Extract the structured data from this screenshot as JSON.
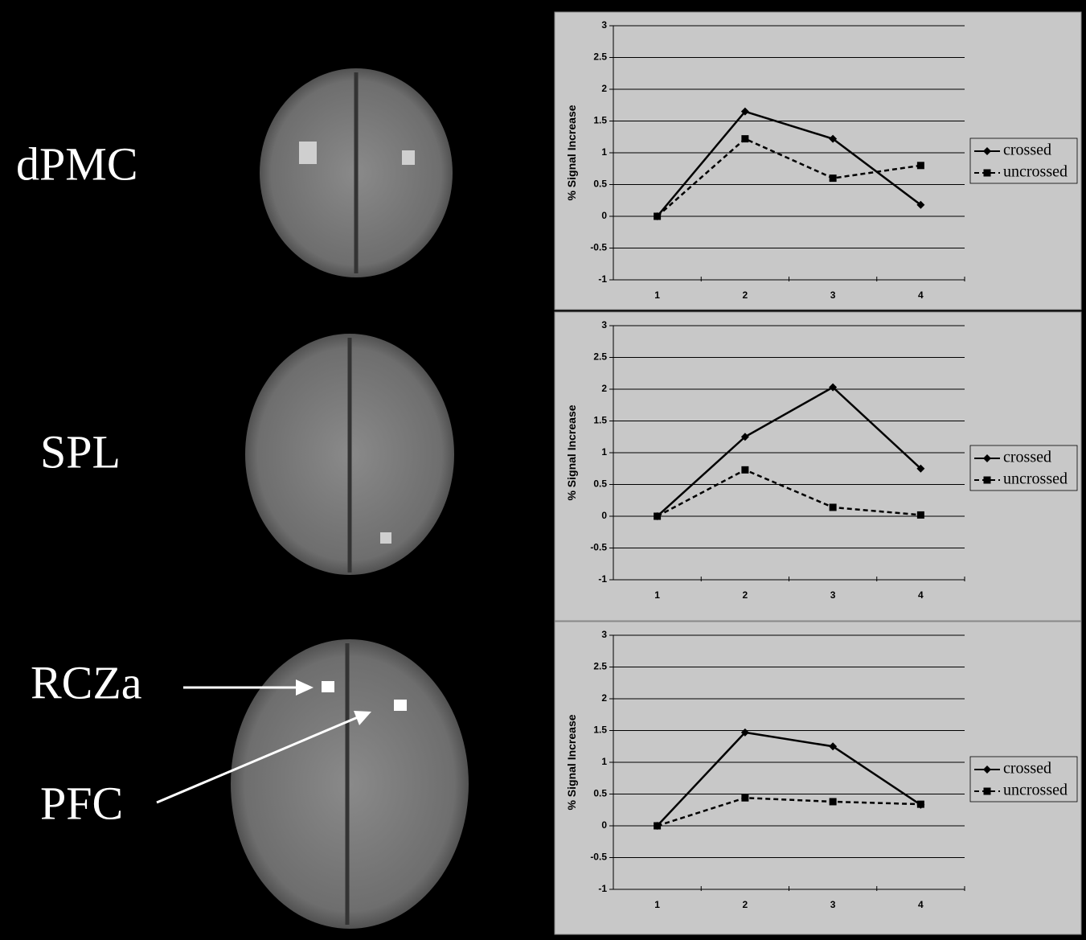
{
  "chart_data": [
    {
      "type": "line",
      "annotations": [
        "dPMC"
      ],
      "y_label": "% Signal Increase",
      "categories": [
        "1",
        "2",
        "3",
        "4"
      ],
      "series": [
        {
          "name": "crossed",
          "color": "#000000",
          "line_style": "solid",
          "marker": "diamond",
          "values": [
            0,
            1.65,
            1.22,
            0.18
          ]
        },
        {
          "name": "uncrossed",
          "color": "#000000",
          "line_style": "dashed",
          "marker": "square",
          "values": [
            0,
            1.22,
            0.6,
            0.8
          ]
        }
      ],
      "ylim": [
        -1,
        3
      ],
      "yticks": [
        -1,
        -0.5,
        0,
        0.5,
        1,
        1.5,
        2,
        2.5,
        3
      ],
      "grid": true,
      "legend": "right"
    },
    {
      "type": "line",
      "annotations": [
        "SPL"
      ],
      "y_label": "% Signal Increase",
      "categories": [
        "1",
        "2",
        "3",
        "4"
      ],
      "series": [
        {
          "name": "crossed",
          "color": "#000000",
          "line_style": "solid",
          "marker": "diamond",
          "values": [
            0,
            1.25,
            2.03,
            0.75
          ]
        },
        {
          "name": "uncrossed",
          "color": "#000000",
          "line_style": "dashed",
          "marker": "square",
          "values": [
            0,
            0.73,
            0.14,
            0.02
          ]
        }
      ],
      "ylim": [
        -1,
        3
      ],
      "yticks": [
        -1,
        -0.5,
        0,
        0.5,
        1,
        1.5,
        2,
        2.5,
        3
      ],
      "grid": true,
      "legend": "right"
    },
    {
      "type": "line",
      "annotations": [
        "RCZa",
        "PFC"
      ],
      "y_label": "% Signal Increase",
      "categories": [
        "1",
        "2",
        "3",
        "4"
      ],
      "series": [
        {
          "name": "crossed",
          "color": "#000000",
          "line_style": "solid",
          "marker": "diamond",
          "values": [
            0,
            1.47,
            1.25,
            0.33
          ]
        },
        {
          "name": "uncrossed",
          "color": "#000000",
          "line_style": "dashed",
          "marker": "square",
          "values": [
            0,
            0.44,
            0.38,
            0.34
          ]
        }
      ],
      "ylim": [
        -1,
        3
      ],
      "yticks": [
        -1,
        -0.5,
        0,
        0.5,
        1,
        1.5,
        2,
        2.5,
        3
      ],
      "grid": true,
      "legend": "right"
    }
  ]
}
